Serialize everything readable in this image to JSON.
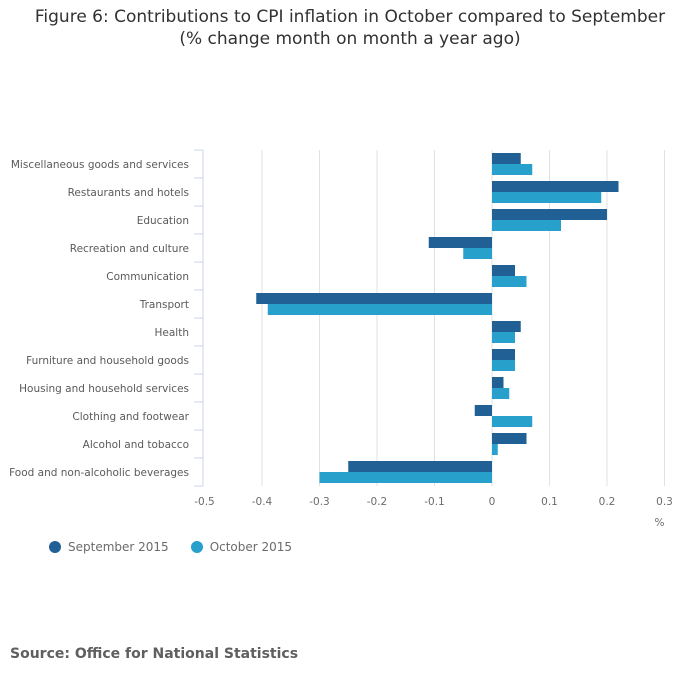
{
  "chart_data": {
    "type": "bar",
    "orientation": "horizontal",
    "title": "Figure 6: Contributions to CPI inflation in October compared to September",
    "subtitle": "(% change month on month a year ago)",
    "categories": [
      "Miscellaneous goods and services",
      "Restaurants and hotels",
      "Education",
      "Recreation and culture",
      "Communication",
      "Transport",
      "Health",
      "Furniture and household goods",
      "Housing and household services",
      "Clothing and footwear",
      "Alcohol and tobacco",
      "Food and non-alcoholic beverages"
    ],
    "series": [
      {
        "name": "September 2015",
        "color": "#206095",
        "values": [
          0.05,
          0.22,
          0.2,
          -0.11,
          0.04,
          -0.41,
          0.05,
          0.04,
          0.02,
          -0.03,
          0.06,
          -0.25
        ]
      },
      {
        "name": "October 2015",
        "color": "#27a0cc",
        "values": [
          0.07,
          0.19,
          0.12,
          -0.05,
          0.06,
          -0.39,
          0.04,
          0.04,
          0.03,
          0.07,
          0.01,
          -0.3
        ]
      }
    ],
    "xlabel": "%",
    "ylabel": "",
    "xlim": [
      -0.5,
      0.3
    ],
    "xticks": [
      "-0.5",
      "-0.4",
      "-0.3",
      "-0.2",
      "-0.1",
      "0",
      "0.1",
      "0.2",
      "0.3"
    ],
    "grid": true,
    "legend": "bottom-left"
  },
  "source": "Source: Office for National Statistics"
}
